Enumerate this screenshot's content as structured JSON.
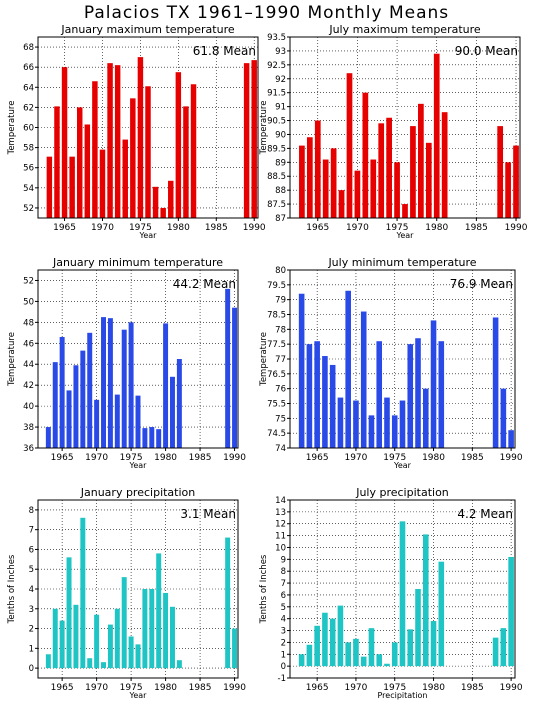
{
  "page_title": "Palacios TX  1961–1990 Monthly Means",
  "chart_data": [
    {
      "type": "bar",
      "title": "January maximum temperature",
      "mean_label": "61.8 Mean",
      "xlabel": "Year",
      "ylabel": "Temperature",
      "color": "#e60000",
      "x_ticks": [
        1965,
        1970,
        1975,
        1980,
        1985,
        1990
      ],
      "xlim": [
        1961.5,
        1990.5
      ],
      "ylim": [
        51,
        69
      ],
      "y_ticks": [
        52,
        54,
        56,
        58,
        60,
        62,
        64,
        66,
        68
      ],
      "years": [
        1963,
        1964,
        1965,
        1966,
        1967,
        1968,
        1969,
        1970,
        1971,
        1972,
        1973,
        1974,
        1975,
        1976,
        1977,
        1978,
        1979,
        1980,
        1981,
        1982,
        1989,
        1990
      ],
      "values": [
        57.1,
        62.1,
        66.0,
        57.1,
        62.0,
        60.3,
        64.6,
        57.8,
        66.4,
        66.2,
        58.8,
        62.9,
        67.0,
        64.1,
        54.1,
        52.0,
        54.7,
        65.5,
        62.1,
        64.3,
        66.4,
        66.7
      ]
    },
    {
      "type": "bar",
      "title": "July maximum temperature",
      "mean_label": "90.0 Mean",
      "xlabel": "Year",
      "ylabel": "Temperature",
      "color": "#e60000",
      "x_ticks": [
        1965,
        1970,
        1975,
        1980,
        1985,
        1990
      ],
      "xlim": [
        1961.5,
        1990.5
      ],
      "ylim": [
        87,
        93.5
      ],
      "y_ticks": [
        87,
        87.5,
        88,
        88.5,
        89,
        89.5,
        90,
        90.5,
        91,
        91.5,
        92,
        92.5,
        93,
        93.5
      ],
      "years": [
        1963,
        1964,
        1965,
        1966,
        1967,
        1968,
        1969,
        1970,
        1971,
        1972,
        1973,
        1974,
        1975,
        1976,
        1977,
        1978,
        1979,
        1980,
        1981,
        1988,
        1989,
        1990
      ],
      "values": [
        89.6,
        89.9,
        90.5,
        89.1,
        89.5,
        88.0,
        92.2,
        88.7,
        91.5,
        89.1,
        90.4,
        90.6,
        89.0,
        87.5,
        90.3,
        91.1,
        89.7,
        92.9,
        90.8,
        90.3,
        89.0,
        89.6
      ]
    },
    {
      "type": "bar",
      "title": "January minimum temperature",
      "mean_label": "44.2 Mean",
      "xlabel": "Year",
      "ylabel": "Temperature",
      "color": "#2a4ae8",
      "x_ticks": [
        1965,
        1970,
        1975,
        1980,
        1985,
        1990
      ],
      "xlim": [
        1961.5,
        1990.5
      ],
      "ylim": [
        36,
        53
      ],
      "y_ticks": [
        36,
        38,
        40,
        42,
        44,
        46,
        48,
        50,
        52
      ],
      "years": [
        1963,
        1964,
        1965,
        1966,
        1967,
        1968,
        1969,
        1970,
        1971,
        1972,
        1973,
        1974,
        1975,
        1976,
        1977,
        1978,
        1979,
        1980,
        1981,
        1982,
        1989,
        1990
      ],
      "values": [
        38.0,
        44.2,
        46.6,
        41.5,
        43.9,
        45.3,
        47.0,
        40.6,
        48.5,
        48.4,
        41.1,
        47.3,
        48.0,
        41.0,
        37.9,
        38.0,
        37.8,
        47.9,
        42.8,
        44.5,
        51.2,
        49.4
      ]
    },
    {
      "type": "bar",
      "title": "July minimum temperature",
      "mean_label": "76.9 Mean",
      "xlabel": "Year",
      "ylabel": "Temperature",
      "color": "#2a4ae8",
      "x_ticks": [
        1965,
        1970,
        1975,
        1980,
        1985,
        1990
      ],
      "xlim": [
        1961.5,
        1990.5
      ],
      "ylim": [
        74,
        80
      ],
      "y_ticks": [
        74,
        74.5,
        75,
        75.5,
        76,
        76.5,
        77,
        77.5,
        78,
        78.5,
        79,
        79.5,
        80
      ],
      "years": [
        1963,
        1964,
        1965,
        1966,
        1967,
        1968,
        1969,
        1970,
        1971,
        1972,
        1973,
        1974,
        1975,
        1976,
        1977,
        1978,
        1979,
        1980,
        1981,
        1988,
        1989,
        1990
      ],
      "values": [
        79.2,
        77.5,
        77.6,
        77.1,
        76.8,
        75.7,
        79.3,
        75.6,
        78.6,
        75.1,
        77.6,
        75.7,
        75.1,
        75.6,
        77.5,
        77.7,
        76.0,
        78.3,
        77.6,
        78.4,
        76.0,
        74.6
      ]
    },
    {
      "type": "bar",
      "title": "January precipitation",
      "mean_label": "3.1  Mean",
      "xlabel": "Year",
      "ylabel": "Tenths of Inches",
      "color": "#1fc4c4",
      "x_ticks": [
        1965,
        1970,
        1975,
        1980,
        1985,
        1990
      ],
      "xlim": [
        1961.5,
        1990.5
      ],
      "ylim": [
        -0.5,
        8.5
      ],
      "y_ticks": [
        0,
        1,
        2,
        3,
        4,
        5,
        6,
        7,
        8
      ],
      "years": [
        1963,
        1964,
        1965,
        1966,
        1967,
        1968,
        1969,
        1970,
        1971,
        1972,
        1973,
        1974,
        1975,
        1976,
        1977,
        1978,
        1979,
        1980,
        1981,
        1982,
        1989,
        1990
      ],
      "values": [
        0.7,
        3.0,
        2.4,
        5.6,
        3.2,
        7.6,
        0.5,
        2.7,
        0.3,
        2.2,
        3.0,
        4.6,
        1.6,
        1.2,
        4.0,
        4.0,
        5.8,
        3.8,
        3.1,
        0.4,
        6.6,
        2.0
      ]
    },
    {
      "type": "bar",
      "title": "July precipitation",
      "mean_label": "4.2  Mean",
      "xlabel": "Precipitation",
      "ylabel": "Tenths of Inches",
      "color": "#1fc4c4",
      "x_ticks": [
        1965,
        1970,
        1975,
        1980,
        1985,
        1990
      ],
      "xlim": [
        1961.5,
        1990.5
      ],
      "ylim": [
        -1,
        14
      ],
      "y_ticks": [
        -1,
        0,
        1,
        2,
        3,
        4,
        5,
        6,
        7,
        8,
        9,
        10,
        11,
        12,
        13,
        14
      ],
      "years": [
        1963,
        1964,
        1965,
        1966,
        1967,
        1968,
        1969,
        1970,
        1971,
        1972,
        1973,
        1974,
        1975,
        1976,
        1977,
        1978,
        1979,
        1980,
        1981,
        1988,
        1989,
        1990
      ],
      "values": [
        1.0,
        1.8,
        3.4,
        4.5,
        4.0,
        5.1,
        2.0,
        2.3,
        0.8,
        3.2,
        1.0,
        0.2,
        2.0,
        12.2,
        3.1,
        6.5,
        11.1,
        3.8,
        8.8,
        2.4,
        3.2,
        9.2
      ]
    }
  ]
}
